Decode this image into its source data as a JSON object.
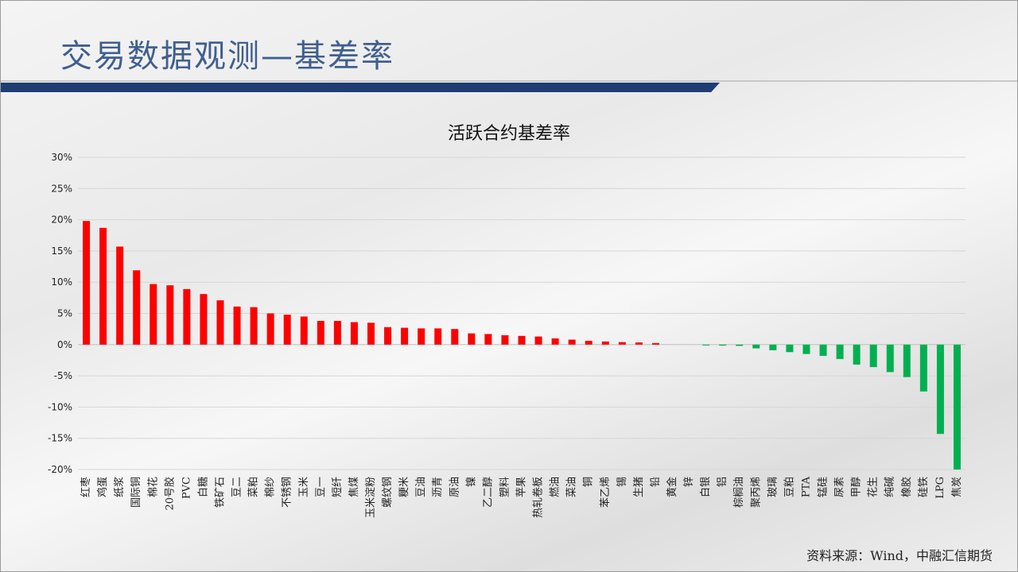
{
  "header": {
    "title": "交易数据观测—基差率"
  },
  "footer": {
    "source": "资料来源：Wind，中融汇信期货"
  },
  "colors": {
    "positive": "#ff0000",
    "negative": "#00b050",
    "title": "#3f5f8f",
    "banner": "#1f3d73"
  },
  "chart_data": {
    "type": "bar",
    "title": "活跃合约基差率",
    "xlabel": "",
    "ylabel": "",
    "ylim": [
      -20,
      30
    ],
    "yticks": [
      30,
      25,
      20,
      15,
      10,
      5,
      0,
      -5,
      -10,
      -15,
      -20
    ],
    "ytick_labels": [
      "30%",
      "25%",
      "20%",
      "15%",
      "10%",
      "5%",
      "0%",
      "-5%",
      "-10%",
      "-15%",
      "-20%"
    ],
    "grid": true,
    "legend": "none",
    "categories": [
      "红枣",
      "鸡蛋",
      "纸浆",
      "国际铜",
      "棉花",
      "20号胶",
      "PVC",
      "白糖",
      "铁矿石",
      "豆二",
      "菜粕",
      "棉纱",
      "不锈钢",
      "玉米",
      "豆一",
      "短纤",
      "焦煤",
      "玉米淀粉",
      "螺纹钢",
      "粳米",
      "豆油",
      "沥青",
      "原油",
      "镍",
      "乙二醇",
      "塑料",
      "苹果",
      "热轧卷板",
      "燃油",
      "菜油",
      "铜",
      "苯乙烯",
      "锡",
      "生猪",
      "铅",
      "黄金",
      "锌",
      "白银",
      "铝",
      "棕榈油",
      "聚丙烯",
      "玻璃",
      "豆粕",
      "PTA",
      "锰硅",
      "尿素",
      "甲醇",
      "花生",
      "纯碱",
      "橡胶",
      "硅铁",
      "LPG",
      "焦炭"
    ],
    "values": [
      19.8,
      18.7,
      15.7,
      11.9,
      9.7,
      9.5,
      8.9,
      8.1,
      7.1,
      6.1,
      6.0,
      5.0,
      4.8,
      4.5,
      3.8,
      3.8,
      3.6,
      3.5,
      2.8,
      2.7,
      2.6,
      2.6,
      2.5,
      1.8,
      1.7,
      1.5,
      1.4,
      1.3,
      1.0,
      0.8,
      0.6,
      0.5,
      0.4,
      0.35,
      0.25,
      0.0,
      0.0,
      -0.1,
      -0.15,
      -0.2,
      -0.6,
      -0.9,
      -1.2,
      -1.5,
      -1.8,
      -2.3,
      -3.2,
      -3.6,
      -4.4,
      -5.2,
      -7.5,
      -14.3,
      -20.0
    ]
  }
}
